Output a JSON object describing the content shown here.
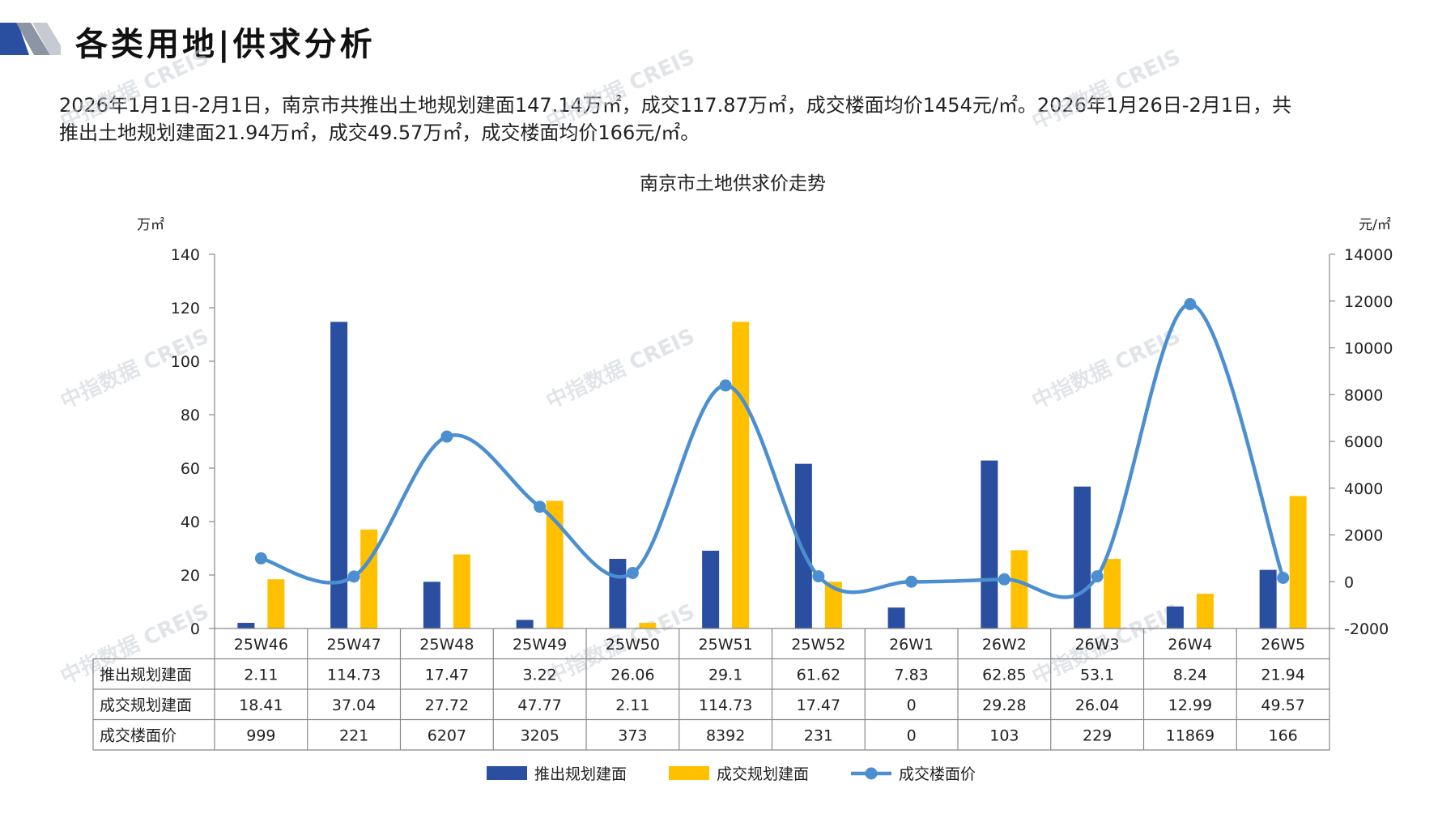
{
  "page": {
    "title": "各类用地|供求分析",
    "summary_line1": "2026年1月1日-2月1日，南京市共推出土地规划建面147.14万㎡，成交117.87万㎡，成交楼面均价1454元/㎡。2026年1月26日-2月1日，共",
    "summary_line2": "推出土地规划建面21.94万㎡，成交49.57万㎡，成交楼面均价166元/㎡。",
    "watermark": "中指数据 CREIS"
  },
  "colors": {
    "supply_bar": "#2B4FA0",
    "deal_bar": "#FFC000",
    "price_line": "#4B8FD0",
    "deco_dark": "#2B4FA0",
    "deco_grey": "#8B95A3"
  },
  "chart_data": {
    "type": "bar",
    "title": "南京市土地供求价走势",
    "ylabel_left": "万㎡",
    "ylabel_right": "元/㎡",
    "ylim_left": [
      0,
      140
    ],
    "yticks_left": [
      0,
      20,
      40,
      60,
      80,
      100,
      120,
      140
    ],
    "ylim_right": [
      -2000,
      14000
    ],
    "yticks_right": [
      -2000,
      0,
      2000,
      4000,
      6000,
      8000,
      10000,
      12000,
      14000
    ],
    "categories": [
      "25W46",
      "25W47",
      "25W48",
      "25W49",
      "25W50",
      "25W51",
      "25W52",
      "26W1",
      "26W2",
      "26W3",
      "26W4",
      "26W5"
    ],
    "series": [
      {
        "name": "推出规划建面",
        "type": "bar",
        "axis": "left",
        "color": "#2B4FA0",
        "values": [
          2.11,
          114.73,
          17.47,
          3.22,
          26.06,
          29.1,
          61.62,
          7.83,
          62.85,
          53.1,
          8.24,
          21.94
        ],
        "labels": [
          "2.11",
          "114.73",
          "17.47",
          "3.22",
          "26.06",
          "29.1",
          "61.62",
          "7.83",
          "62.85",
          "53.1",
          "8.24",
          "21.94"
        ]
      },
      {
        "name": "成交规划建面",
        "type": "bar",
        "axis": "left",
        "color": "#FFC000",
        "values": [
          18.41,
          37.04,
          27.72,
          47.77,
          2.11,
          114.73,
          17.47,
          0,
          29.28,
          26.04,
          12.99,
          49.57
        ],
        "labels": [
          "18.41",
          "37.04",
          "27.72",
          "47.77",
          "2.11",
          "114.73",
          "17.47",
          "0",
          "29.28",
          "26.04",
          "12.99",
          "49.57"
        ]
      },
      {
        "name": "成交楼面价",
        "type": "line",
        "axis": "right",
        "color": "#4B8FD0",
        "smooth": true,
        "values": [
          999,
          221,
          6207,
          3205,
          373,
          8392,
          231,
          0,
          103,
          229,
          11869,
          166
        ],
        "labels": [
          "999",
          "221",
          "6207",
          "3205",
          "373",
          "8392",
          "231",
          "0",
          "103",
          "229",
          "11869",
          "166"
        ]
      }
    ],
    "legend_position": "bottom",
    "data_table": true,
    "grid": false
  }
}
